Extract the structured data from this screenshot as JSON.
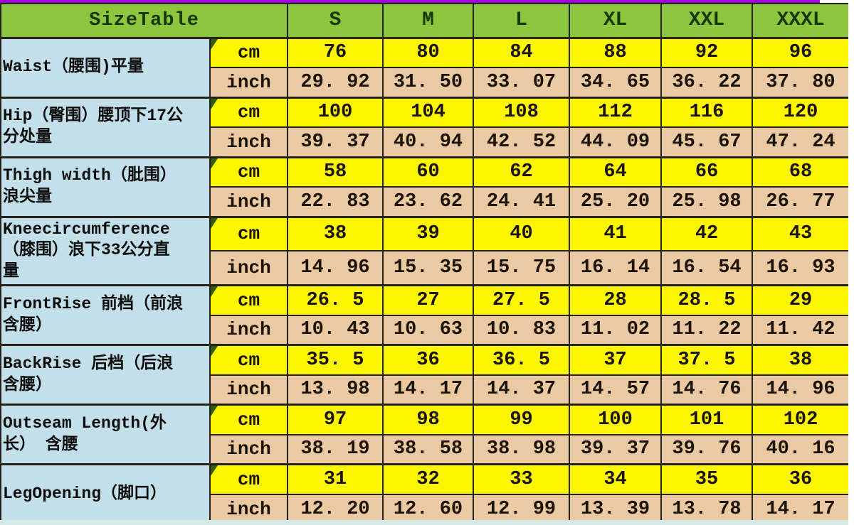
{
  "page": {
    "top_border_color": "#9c00d2",
    "right_margin_color": "#ffffff",
    "bottom_edge_color": "#d7e9e4",
    "border_color": "#24221a"
  },
  "colors": {
    "header_green": "#8cc53e",
    "header_text_green": "#18380c",
    "label_blue": "#c3e0ea",
    "cm_yellow": "#fcf601",
    "inch_tan": "#ebc9a2",
    "value_text": "#1c1408",
    "corner_wedge_green": "#2f5d11"
  },
  "chart_data": {
    "type": "table",
    "title": "SizeTable",
    "column_headers": [
      "S",
      "M",
      "L",
      "XL",
      "XXL",
      "XXXL"
    ],
    "unit_column_values": [
      "cm",
      "inch"
    ],
    "row_groups": [
      {
        "label": "Waist（腰围)平量",
        "units": [
          {
            "unit": "cm",
            "values": [
              "76",
              "80",
              "84",
              "88",
              "92",
              "96"
            ]
          },
          {
            "unit": "inch",
            "values": [
              "29. 92",
              "31. 50",
              "33. 07",
              "34. 65",
              "36. 22",
              "37. 80"
            ]
          }
        ]
      },
      {
        "label": "Hip（臀围）腰顶下17公分处量",
        "units": [
          {
            "unit": "cm",
            "values": [
              "100",
              "104",
              "108",
              "112",
              "116",
              "120"
            ]
          },
          {
            "unit": "inch",
            "values": [
              "39. 37",
              "40. 94",
              "42. 52",
              "44. 09",
              "45. 67",
              "47. 24"
            ]
          }
        ]
      },
      {
        "label": "Thigh width（肶围）浪尖量",
        "units": [
          {
            "unit": "cm",
            "values": [
              "58",
              "60",
              "62",
              "64",
              "66",
              "68"
            ]
          },
          {
            "unit": "inch",
            "values": [
              "22. 83",
              "23. 62",
              "24. 41",
              "25. 20",
              "25. 98",
              "26. 77"
            ]
          }
        ]
      },
      {
        "label": "Kneecircumference（膝围）浪下33公分直量",
        "units": [
          {
            "unit": "cm",
            "values": [
              "38",
              "39",
              "40",
              "41",
              "42",
              "43"
            ]
          },
          {
            "unit": "inch",
            "values": [
              "14. 96",
              "15. 35",
              "15. 75",
              "16. 14",
              "16. 54",
              "16. 93"
            ]
          }
        ]
      },
      {
        "label": "FrontRise 前档（前浪含腰）",
        "units": [
          {
            "unit": "cm",
            "values": [
              "26. 5",
              "27",
              "27. 5",
              "28",
              "28. 5",
              "29"
            ]
          },
          {
            "unit": "inch",
            "values": [
              "10. 43",
              "10. 63",
              "10. 83",
              "11. 02",
              "11. 22",
              "11. 42"
            ]
          }
        ]
      },
      {
        "label": "BackRise 后档（后浪含腰）",
        "units": [
          {
            "unit": "cm",
            "values": [
              "35. 5",
              "36",
              "36. 5",
              "37",
              "37. 5",
              "38"
            ]
          },
          {
            "unit": "inch",
            "values": [
              "13. 98",
              "14. 17",
              "14. 37",
              "14. 57",
              "14. 76",
              "14. 96"
            ]
          }
        ]
      },
      {
        "label": "Outseam Length(外长） 含腰",
        "units": [
          {
            "unit": "cm",
            "values": [
              "97",
              "98",
              "99",
              "100",
              "101",
              "102"
            ]
          },
          {
            "unit": "inch",
            "values": [
              "38. 19",
              "38. 58",
              "38. 98",
              "39. 37",
              "39. 76",
              "40. 16"
            ]
          }
        ]
      },
      {
        "label": "LegOpening（脚口）",
        "units": [
          {
            "unit": "cm",
            "values": [
              "31",
              "32",
              "33",
              "34",
              "35",
              "36"
            ]
          },
          {
            "unit": "inch",
            "values": [
              "12. 20",
              "12. 60",
              "12. 99",
              "13. 39",
              "13. 78",
              "14. 17"
            ]
          }
        ]
      }
    ]
  }
}
